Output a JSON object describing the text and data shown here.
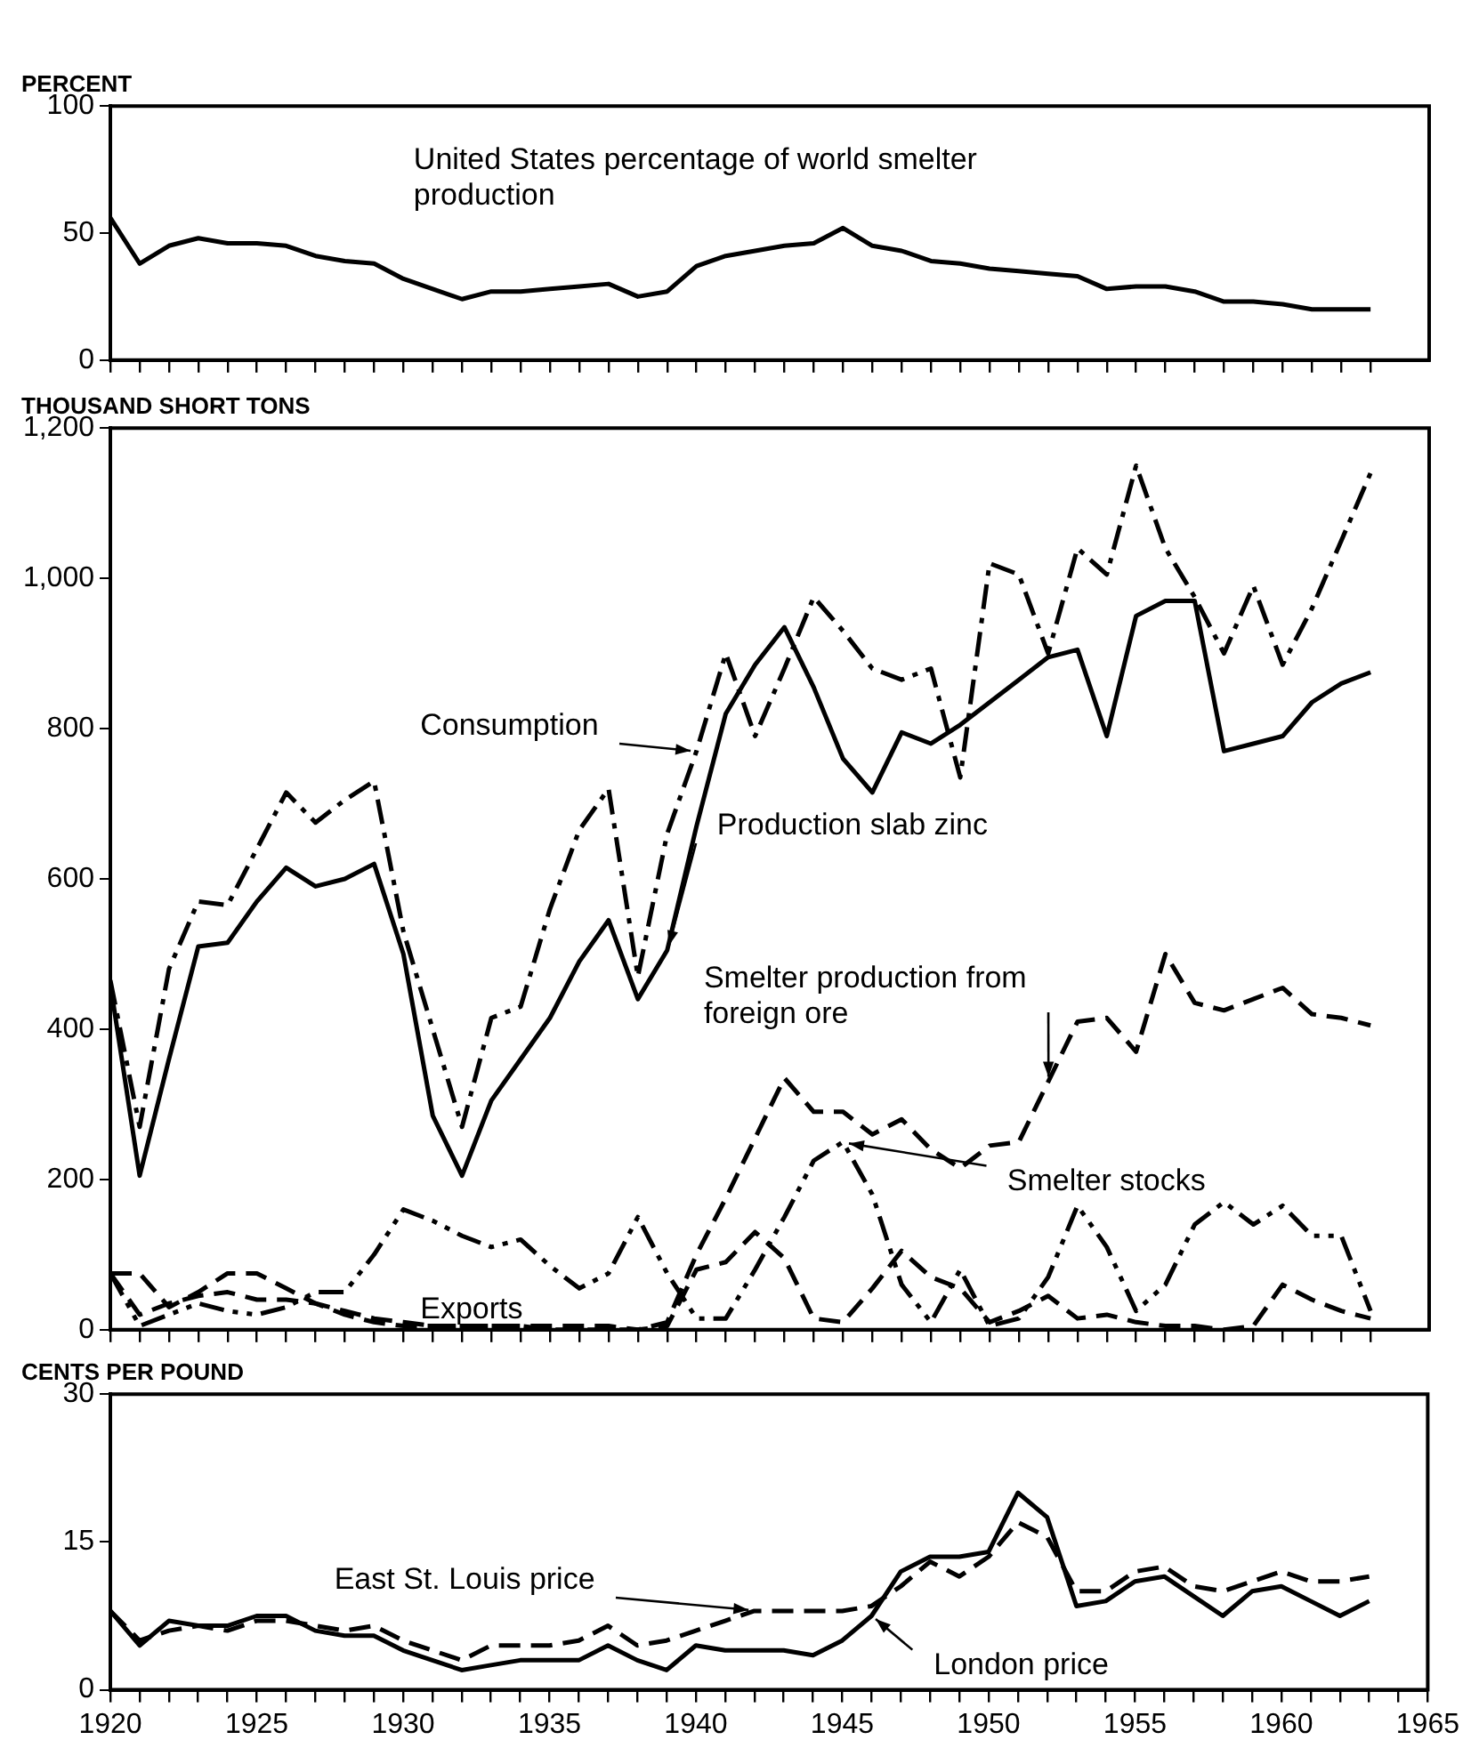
{
  "chart_data": [
    {
      "type": "line",
      "ylabel": "PERCENT",
      "x": [
        1920,
        1921,
        1922,
        1923,
        1924,
        1925,
        1926,
        1927,
        1928,
        1929,
        1930,
        1931,
        1932,
        1933,
        1934,
        1935,
        1936,
        1937,
        1938,
        1939,
        1940,
        1941,
        1942,
        1943,
        1944,
        1945,
        1946,
        1947,
        1948,
        1949,
        1950,
        1951,
        1952,
        1953,
        1954,
        1955,
        1956,
        1957,
        1958,
        1959,
        1960,
        1961,
        1962,
        1963
      ],
      "series": [
        {
          "name": "United States percentage of world smelter production",
          "color": "#000000",
          "line_style": "solid",
          "values": [
            56,
            38,
            45,
            48,
            46,
            46,
            45,
            41,
            39,
            38,
            32,
            28,
            24,
            27,
            27,
            28,
            29,
            30,
            25,
            27,
            37,
            41,
            43,
            45,
            46,
            52,
            45,
            43,
            39,
            38,
            36,
            35,
            34,
            33,
            28,
            29,
            29,
            27,
            23,
            23,
            22,
            20,
            20,
            20
          ]
        }
      ],
      "xlim": [
        1920,
        1965
      ],
      "xticks": [
        {
          "value": 1920,
          "label": null
        },
        {
          "value": 1921,
          "label": null
        },
        {
          "value": 1922,
          "label": null
        },
        {
          "value": 1923,
          "label": null
        },
        {
          "value": 1924,
          "label": null
        },
        {
          "value": 1925,
          "label": null
        },
        {
          "value": 1926,
          "label": null
        },
        {
          "value": 1927,
          "label": null
        },
        {
          "value": 1928,
          "label": null
        },
        {
          "value": 1929,
          "label": null
        },
        {
          "value": 1930,
          "label": null
        },
        {
          "value": 1931,
          "label": null
        },
        {
          "value": 1932,
          "label": null
        },
        {
          "value": 1933,
          "label": null
        },
        {
          "value": 1934,
          "label": null
        },
        {
          "value": 1935,
          "label": null
        },
        {
          "value": 1936,
          "label": null
        },
        {
          "value": 1937,
          "label": null
        },
        {
          "value": 1938,
          "label": null
        },
        {
          "value": 1939,
          "label": null
        },
        {
          "value": 1940,
          "label": null
        },
        {
          "value": 1941,
          "label": null
        },
        {
          "value": 1942,
          "label": null
        },
        {
          "value": 1943,
          "label": null
        },
        {
          "value": 1944,
          "label": null
        },
        {
          "value": 1945,
          "label": null
        },
        {
          "value": 1946,
          "label": null
        },
        {
          "value": 1947,
          "label": null
        },
        {
          "value": 1948,
          "label": null
        },
        {
          "value": 1949,
          "label": null
        },
        {
          "value": 1950,
          "label": null
        },
        {
          "value": 1951,
          "label": null
        },
        {
          "value": 1952,
          "label": null
        },
        {
          "value": 1953,
          "label": null
        },
        {
          "value": 1954,
          "label": null
        },
        {
          "value": 1955,
          "label": null
        },
        {
          "value": 1956,
          "label": null
        },
        {
          "value": 1957,
          "label": null
        },
        {
          "value": 1958,
          "label": null
        },
        {
          "value": 1959,
          "label": null
        },
        {
          "value": 1960,
          "label": null
        },
        {
          "value": 1961,
          "label": null
        },
        {
          "value": 1962,
          "label": null
        },
        {
          "value": 1963,
          "label": null
        }
      ],
      "ylim": [
        0,
        100
      ],
      "yticks": [
        0,
        50,
        100
      ],
      "tick_labels": "y",
      "grid": false,
      "legend": false,
      "marker": "none"
    },
    {
      "type": "line",
      "ylabel": "THOUSAND SHORT TONS",
      "x": [
        1920,
        1921,
        1922,
        1923,
        1924,
        1925,
        1926,
        1927,
        1928,
        1929,
        1930,
        1931,
        1932,
        1933,
        1934,
        1935,
        1936,
        1937,
        1938,
        1939,
        1940,
        1941,
        1942,
        1943,
        1944,
        1945,
        1946,
        1947,
        1948,
        1949,
        1950,
        1951,
        1952,
        1953,
        1954,
        1955,
        1956,
        1957,
        1958,
        1959,
        1960,
        1961,
        1962,
        1963
      ],
      "series": [
        {
          "name": "Consumption",
          "color": "#000000",
          "line_style": "dashdot",
          "values": [
            465,
            270,
            480,
            570,
            565,
            640,
            715,
            675,
            705,
            730,
            530,
            400,
            270,
            415,
            430,
            560,
            665,
            720,
            470,
            660,
            770,
            900,
            790,
            880,
            975,
            930,
            880,
            865,
            880,
            735,
            1020,
            1005,
            900,
            1040,
            1005,
            1150,
            1040,
            975,
            900,
            990,
            885,
            960,
            1050,
            1140
          ]
        },
        {
          "name": "Production slab zinc",
          "color": "#000000",
          "line_style": "solid",
          "values": [
            460,
            205,
            360,
            510,
            515,
            570,
            615,
            590,
            600,
            620,
            500,
            285,
            205,
            305,
            360,
            415,
            490,
            545,
            440,
            505,
            670,
            820,
            885,
            935,
            855,
            760,
            715,
            795,
            780,
            805,
            835,
            865,
            895,
            905,
            790,
            950,
            970,
            970,
            770,
            780,
            790,
            835,
            860,
            875
          ]
        },
        {
          "name": "Smelter production from foreign ore",
          "color": "#000000",
          "line_style": "dashed",
          "values": [
            75,
            75,
            30,
            50,
            75,
            75,
            55,
            35,
            20,
            10,
            5,
            5,
            5,
            5,
            5,
            0,
            0,
            0,
            0,
            10,
            100,
            175,
            255,
            335,
            290,
            290,
            260,
            280,
            240,
            215,
            245,
            250,
            330,
            410,
            415,
            370,
            500,
            435,
            425,
            440,
            455,
            420,
            415,
            405
          ]
        },
        {
          "name": "Smelter stocks",
          "color": "#000000",
          "line_style": "dashdotdot",
          "values": [
            75,
            5,
            20,
            35,
            25,
            20,
            30,
            50,
            50,
            100,
            160,
            145,
            125,
            110,
            120,
            85,
            55,
            75,
            150,
            75,
            15,
            15,
            80,
            150,
            225,
            250,
            180,
            60,
            10,
            80,
            5,
            15,
            70,
            165,
            110,
            25,
            60,
            140,
            170,
            140,
            165,
            125,
            125,
            25
          ]
        },
        {
          "name": "Exports",
          "color": "#000000",
          "line_style": "dashed",
          "values": [
            75,
            20,
            35,
            45,
            50,
            40,
            40,
            35,
            25,
            15,
            10,
            5,
            5,
            5,
            5,
            5,
            5,
            5,
            0,
            5,
            80,
            90,
            130,
            95,
            15,
            10,
            55,
            105,
            70,
            55,
            10,
            25,
            45,
            15,
            20,
            10,
            5,
            5,
            0,
            5,
            60,
            40,
            25,
            15
          ]
        }
      ],
      "xlim": [
        1920,
        1965
      ],
      "xticks": [
        {
          "value": 1920,
          "label": null
        },
        {
          "value": 1921,
          "label": null
        },
        {
          "value": 1922,
          "label": null
        },
        {
          "value": 1923,
          "label": null
        },
        {
          "value": 1924,
          "label": null
        },
        {
          "value": 1925,
          "label": null
        },
        {
          "value": 1926,
          "label": null
        },
        {
          "value": 1927,
          "label": null
        },
        {
          "value": 1928,
          "label": null
        },
        {
          "value": 1929,
          "label": null
        },
        {
          "value": 1930,
          "label": null
        },
        {
          "value": 1931,
          "label": null
        },
        {
          "value": 1932,
          "label": null
        },
        {
          "value": 1933,
          "label": null
        },
        {
          "value": 1934,
          "label": null
        },
        {
          "value": 1935,
          "label": null
        },
        {
          "value": 1936,
          "label": null
        },
        {
          "value": 1937,
          "label": null
        },
        {
          "value": 1938,
          "label": null
        },
        {
          "value": 1939,
          "label": null
        },
        {
          "value": 1940,
          "label": null
        },
        {
          "value": 1941,
          "label": null
        },
        {
          "value": 1942,
          "label": null
        },
        {
          "value": 1943,
          "label": null
        },
        {
          "value": 1944,
          "label": null
        },
        {
          "value": 1945,
          "label": null
        },
        {
          "value": 1946,
          "label": null
        },
        {
          "value": 1947,
          "label": null
        },
        {
          "value": 1948,
          "label": null
        },
        {
          "value": 1949,
          "label": null
        },
        {
          "value": 1950,
          "label": null
        },
        {
          "value": 1951,
          "label": null
        },
        {
          "value": 1952,
          "label": null
        },
        {
          "value": 1953,
          "label": null
        },
        {
          "value": 1954,
          "label": null
        },
        {
          "value": 1955,
          "label": null
        },
        {
          "value": 1956,
          "label": null
        },
        {
          "value": 1957,
          "label": null
        },
        {
          "value": 1958,
          "label": null
        },
        {
          "value": 1959,
          "label": null
        },
        {
          "value": 1960,
          "label": null
        },
        {
          "value": 1961,
          "label": null
        },
        {
          "value": 1962,
          "label": null
        },
        {
          "value": 1963,
          "label": null
        }
      ],
      "ylim": [
        0,
        1200
      ],
      "yticks": [
        0,
        200,
        400,
        600,
        800,
        {
          "value": 1000,
          "label": "1,000"
        },
        {
          "value": 1200,
          "label": "1,200"
        }
      ],
      "tick_labels": "y",
      "grid": false,
      "legend": false,
      "marker": "none"
    },
    {
      "type": "line",
      "ylabel": "CENTS PER POUND",
      "x": [
        1920,
        1921,
        1922,
        1923,
        1924,
        1925,
        1926,
        1927,
        1928,
        1929,
        1930,
        1931,
        1932,
        1933,
        1934,
        1935,
        1936,
        1937,
        1938,
        1939,
        1940,
        1941,
        1942,
        1943,
        1944,
        1945,
        1946,
        1947,
        1948,
        1949,
        1950,
        1951,
        1952,
        1953,
        1954,
        1955,
        1956,
        1957,
        1958,
        1959,
        1960,
        1961,
        1962,
        1963
      ],
      "series": [
        {
          "name": "East St. Louis price",
          "color": "#000000",
          "line_style": "dashed",
          "values": [
            8,
            5,
            6,
            6.5,
            6,
            7,
            7,
            6.5,
            6,
            6.5,
            5,
            4,
            3,
            4.5,
            4.5,
            4.5,
            5,
            6.5,
            4.5,
            5,
            6,
            7,
            8,
            8,
            8,
            8,
            8.5,
            10.5,
            13,
            11.5,
            13.5,
            17,
            15.5,
            10,
            10,
            12,
            12.5,
            10.5,
            10,
            11,
            12,
            11,
            11,
            11.5
          ]
        },
        {
          "name": "London price",
          "color": "#000000",
          "line_style": "solid",
          "values": [
            8,
            4.5,
            7,
            6.5,
            6.5,
            7.5,
            7.5,
            6,
            5.5,
            5.5,
            4,
            3,
            2,
            2.5,
            3,
            3,
            3,
            4.5,
            3,
            2,
            4.5,
            4,
            4,
            4,
            3.5,
            5,
            7.5,
            12,
            13.5,
            13.5,
            14,
            20,
            17.5,
            8.5,
            9,
            11,
            11.5,
            9.5,
            7.5,
            10,
            10.5,
            9,
            7.5,
            9
          ]
        }
      ],
      "xlim": [
        1920,
        1965
      ],
      "xticks": [
        1920,
        {
          "value": 1921,
          "label": null
        },
        {
          "value": 1922,
          "label": null
        },
        {
          "value": 1923,
          "label": null
        },
        {
          "value": 1924,
          "label": null
        },
        1925,
        {
          "value": 1926,
          "label": null
        },
        {
          "value": 1927,
          "label": null
        },
        {
          "value": 1928,
          "label": null
        },
        {
          "value": 1929,
          "label": null
        },
        1930,
        {
          "value": 1931,
          "label": null
        },
        {
          "value": 1932,
          "label": null
        },
        {
          "value": 1933,
          "label": null
        },
        {
          "value": 1934,
          "label": null
        },
        1935,
        {
          "value": 1936,
          "label": null
        },
        {
          "value": 1937,
          "label": null
        },
        {
          "value": 1938,
          "label": null
        },
        {
          "value": 1939,
          "label": null
        },
        1940,
        {
          "value": 1941,
          "label": null
        },
        {
          "value": 1942,
          "label": null
        },
        {
          "value": 1943,
          "label": null
        },
        {
          "value": 1944,
          "label": null
        },
        1945,
        {
          "value": 1946,
          "label": null
        },
        {
          "value": 1947,
          "label": null
        },
        {
          "value": 1948,
          "label": null
        },
        {
          "value": 1949,
          "label": null
        },
        1950,
        {
          "value": 1951,
          "label": null
        },
        {
          "value": 1952,
          "label": null
        },
        {
          "value": 1953,
          "label": null
        },
        {
          "value": 1954,
          "label": null
        },
        1955,
        {
          "value": 1956,
          "label": null
        },
        {
          "value": 1957,
          "label": null
        },
        {
          "value": 1958,
          "label": null
        },
        {
          "value": 1959,
          "label": null
        },
        1960,
        {
          "value": 1961,
          "label": null
        },
        {
          "value": 1962,
          "label": null
        },
        {
          "value": 1963,
          "label": null
        },
        {
          "value": 1964,
          "label": null
        },
        1965
      ],
      "ylim": [
        0,
        30
      ],
      "yticks": [
        0,
        15,
        30
      ],
      "grid": false,
      "legend": false,
      "marker": "none"
    }
  ]
}
